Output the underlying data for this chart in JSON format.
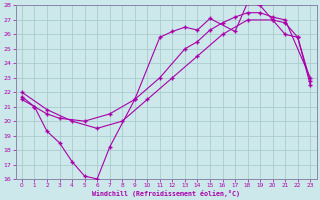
{
  "xlabel": "Windchill (Refroidissement éolien,°C)",
  "bg_color": "#cce8ea",
  "grid_color": "#aacccc",
  "line_color": "#aa00aa",
  "spine_color": "#8888aa",
  "xlim": [
    -0.5,
    23.5
  ],
  "ylim": [
    16,
    28
  ],
  "xticks": [
    0,
    1,
    2,
    3,
    4,
    5,
    6,
    7,
    8,
    9,
    10,
    11,
    12,
    13,
    14,
    15,
    16,
    17,
    18,
    19,
    20,
    21,
    22,
    23
  ],
  "yticks": [
    16,
    17,
    18,
    19,
    20,
    21,
    22,
    23,
    24,
    25,
    26,
    27,
    28
  ],
  "line1_x": [
    0,
    1,
    2,
    3,
    4,
    5,
    6,
    7,
    9,
    11,
    12,
    13,
    14,
    15,
    17,
    18,
    19,
    20,
    21,
    22,
    23
  ],
  "line1_y": [
    21.7,
    21.0,
    19.3,
    18.5,
    17.2,
    16.2,
    16.0,
    18.2,
    21.5,
    25.8,
    26.2,
    26.5,
    26.3,
    27.1,
    26.2,
    28.2,
    28.0,
    27.0,
    26.0,
    25.8,
    22.8
  ],
  "line2_x": [
    0,
    1,
    2,
    3,
    5,
    7,
    9,
    11,
    13,
    14,
    15,
    16,
    17,
    18,
    19,
    20,
    21,
    23
  ],
  "line2_y": [
    21.5,
    21.0,
    20.5,
    20.2,
    20.0,
    20.5,
    21.5,
    23.0,
    25.0,
    25.5,
    26.3,
    26.8,
    27.2,
    27.5,
    27.5,
    27.2,
    27.0,
    23.0
  ],
  "line3_x": [
    0,
    2,
    4,
    6,
    8,
    10,
    12,
    14,
    16,
    18,
    20,
    21,
    22,
    23
  ],
  "line3_y": [
    22.0,
    20.8,
    20.0,
    19.5,
    20.0,
    21.5,
    23.0,
    24.5,
    26.0,
    27.0,
    27.0,
    26.8,
    25.8,
    22.5
  ]
}
